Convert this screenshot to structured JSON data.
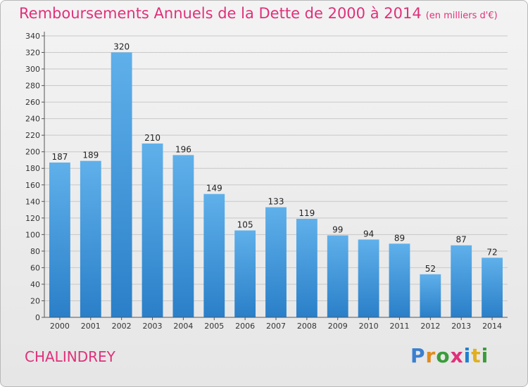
{
  "title": "Remboursements Annuels de la Dette de 2000 à 2014",
  "unit": "(en milliers d'€)",
  "commune": "CHALINDREY",
  "logo": {
    "text": "Proxiti",
    "letter_colors": [
      "#3a7fd0",
      "#e08b1f",
      "#3a9c3a",
      "#e0307a",
      "#1f7fd0",
      "#e0b020",
      "#3a9c3a"
    ]
  },
  "colors": {
    "bar_top": "#5fb0ea",
    "bar_bottom": "#2a7fc8",
    "accent": "#e0307a"
  },
  "chart_data": {
    "type": "bar",
    "categories": [
      "2000",
      "2001",
      "2002",
      "2003",
      "2004",
      "2005",
      "2006",
      "2007",
      "2008",
      "2009",
      "2010",
      "2011",
      "2012",
      "2013",
      "2014"
    ],
    "values": [
      187,
      189,
      320,
      210,
      196,
      149,
      105,
      133,
      119,
      99,
      94,
      89,
      52,
      87,
      72
    ],
    "ylim": [
      0,
      340
    ],
    "ytick_step": 20,
    "grid": true
  }
}
